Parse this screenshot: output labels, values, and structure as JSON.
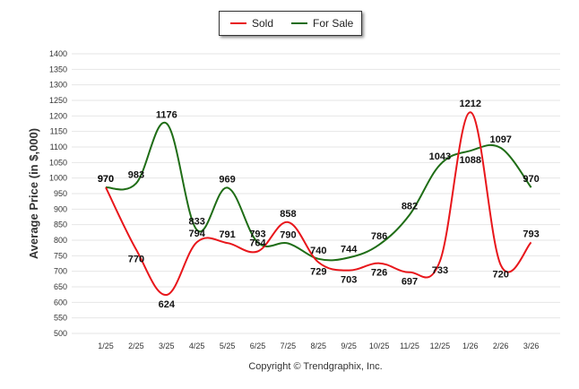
{
  "chart_data": {
    "type": "line",
    "title": "",
    "xlabel": "",
    "ylabel": "Average Price (in $,000)",
    "ylim": [
      500,
      1400
    ],
    "yticks": [
      500,
      550,
      600,
      650,
      700,
      750,
      800,
      850,
      900,
      950,
      1000,
      1050,
      1100,
      1150,
      1200,
      1250,
      1300,
      1350,
      1400
    ],
    "categories": [
      "1/25",
      "2/25",
      "3/25",
      "4/25",
      "5/25",
      "6/25",
      "7/25",
      "8/25",
      "9/25",
      "10/25",
      "11/25",
      "12/25",
      "1/26",
      "2/26",
      "3/26"
    ],
    "series": [
      {
        "name": "Sold",
        "color": "#e8161b",
        "values": [
          970,
          770,
          624,
          794,
          791,
          764,
          858,
          729,
          703,
          726,
          697,
          733,
          1212,
          720,
          793
        ]
      },
      {
        "name": "For Sale",
        "color": "#1f6d16",
        "values": [
          970,
          983,
          1176,
          833,
          969,
          793,
          790,
          740,
          744,
          786,
          882,
          1043,
          1088,
          1097,
          970
        ]
      }
    ],
    "grid": true,
    "legend_position": "top-center",
    "credit": "Copyright © Trendgraphix, Inc."
  }
}
